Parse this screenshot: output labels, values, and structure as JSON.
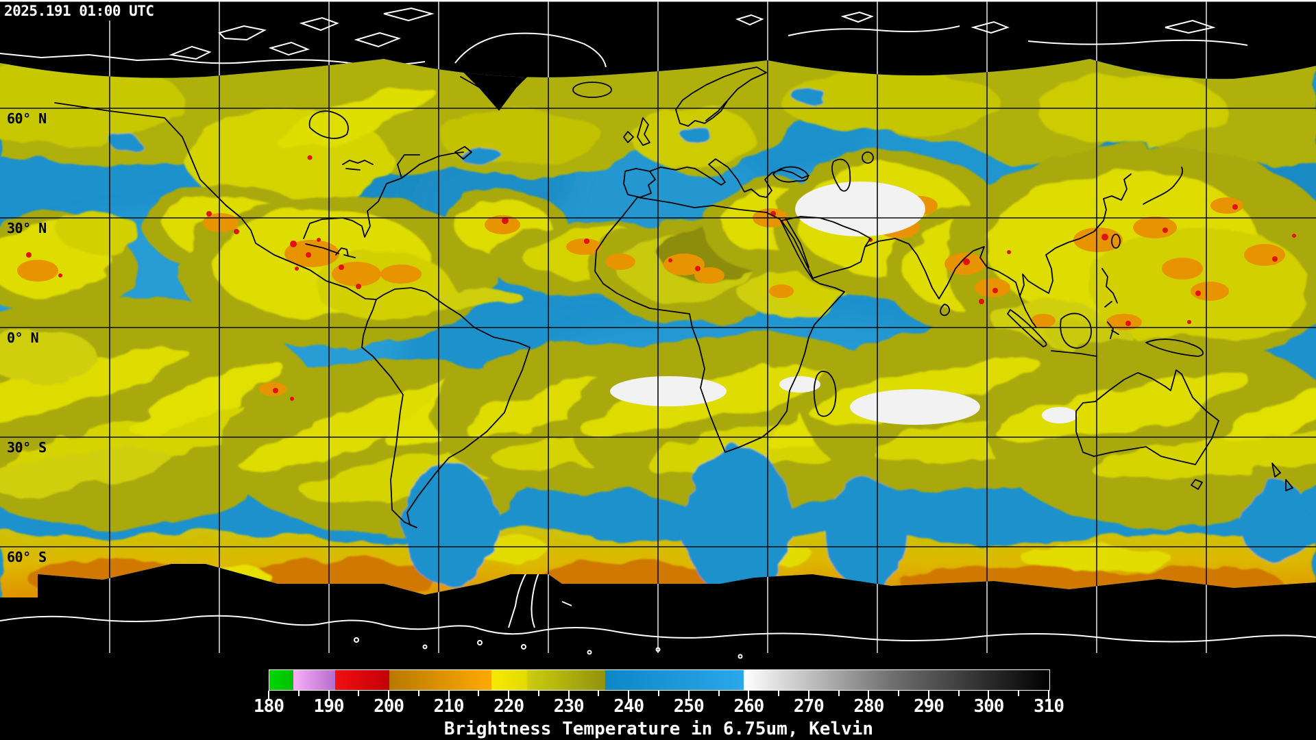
{
  "header": {
    "timestamp": "2025.191 01:00 UTC"
  },
  "map": {
    "projection": "global equirectangular composite",
    "latitude_labels": [
      {
        "text": "60° N"
      },
      {
        "text": "30° N"
      },
      {
        "text": "0° N"
      },
      {
        "text": "30° S"
      },
      {
        "text": "60° S"
      }
    ],
    "grid": {
      "lat_step_deg": 30,
      "lon_step_deg": 30
    },
    "palette": {
      "ocean_blue": "#1d91cc",
      "cloud_yellow": "#dedc00",
      "cloud_olive": "#a9a90c",
      "cloud_orange": "#e89400",
      "cloud_red": "#e01212",
      "warm_white": "#f2f2f2",
      "south_orange": "#e8a000"
    }
  },
  "colorbar": {
    "caption": "Brightness Temperature in 6.75um, Kelvin",
    "min": 180,
    "max": 310,
    "minor_tick_step": 5,
    "labeled_tick_step": 10,
    "tick_labels": [
      "180",
      "190",
      "200",
      "210",
      "220",
      "230",
      "240",
      "250",
      "260",
      "270",
      "280",
      "290",
      "300",
      "310"
    ],
    "segments": [
      {
        "from": 180,
        "to": 184,
        "color_start": "#00d600",
        "color_end": "#00c000"
      },
      {
        "from": 184,
        "to": 191,
        "color_start": "#f8b0f8",
        "color_end": "#b66ccc"
      },
      {
        "from": 191,
        "to": 200,
        "color_start": "#f01010",
        "color_end": "#c40008"
      },
      {
        "from": 200,
        "to": 217,
        "color_start": "#b87800",
        "color_end": "#ffaa00"
      },
      {
        "from": 217,
        "to": 223,
        "color_start": "#f6ea00",
        "color_end": "#e2da00"
      },
      {
        "from": 223,
        "to": 236,
        "color_start": "#cccc10",
        "color_end": "#92920e"
      },
      {
        "from": 236,
        "to": 259,
        "color_start": "#0e86c6",
        "color_end": "#2aa8ea"
      },
      {
        "from": 259,
        "to": 284,
        "color_start": "#ffffff",
        "color_end": "#6e6e6e"
      },
      {
        "from": 284,
        "to": 310,
        "color_start": "#6e6e6e",
        "color_end": "#000000"
      }
    ]
  }
}
